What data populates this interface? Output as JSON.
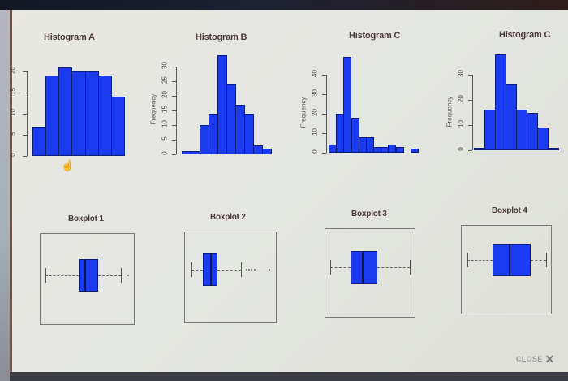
{
  "dialog": {
    "close_label": "CLOSE",
    "close_icon": "x-icon"
  },
  "colors": {
    "bar_fill": "#1a3bf0",
    "bar_border": "#0c1c7a",
    "panel_bg": "#e6e6e0",
    "title_text": "#4a3a3a"
  },
  "histograms": [
    {
      "title": "Histogram A",
      "ylabel": "",
      "yticks": [
        "0",
        "5",
        "10",
        "15",
        "20"
      ]
    },
    {
      "title": "Histogram B",
      "ylabel": "Frequency",
      "yticks": [
        "0",
        "5",
        "10",
        "15",
        "20",
        "25",
        "30"
      ]
    },
    {
      "title": "Histogram C",
      "ylabel": "Frequency",
      "yticks": [
        "0",
        "10",
        "20",
        "30",
        "40"
      ]
    },
    {
      "title": "Histogram C",
      "ylabel": "Frequency",
      "yticks": [
        "0",
        "10",
        "20",
        "30"
      ]
    }
  ],
  "boxplots": [
    {
      "title": "Boxplot 1"
    },
    {
      "title": "Boxplot 2"
    },
    {
      "title": "Boxplot 3"
    },
    {
      "title": "Boxplot 4"
    }
  ],
  "chart_data": [
    {
      "type": "bar",
      "title": "Histogram A",
      "xlabel": "",
      "ylabel": "",
      "ylim": [
        0,
        20
      ],
      "values": [
        7,
        19,
        21,
        20,
        20,
        19,
        14
      ],
      "grid": false
    },
    {
      "type": "bar",
      "title": "Histogram B",
      "xlabel": "",
      "ylabel": "Frequency",
      "ylim": [
        0,
        30
      ],
      "values": [
        1,
        1,
        10,
        14,
        34,
        24,
        17,
        14,
        3,
        2
      ],
      "grid": false
    },
    {
      "type": "bar",
      "title": "Histogram C",
      "xlabel": "",
      "ylabel": "Frequency",
      "ylim": [
        0,
        40
      ],
      "values": [
        4,
        20,
        49,
        18,
        8,
        8,
        3,
        3,
        4,
        3,
        0,
        2
      ],
      "grid": false
    },
    {
      "type": "bar",
      "title": "Histogram C",
      "xlabel": "",
      "ylabel": "Frequency",
      "ylim": [
        0,
        30
      ],
      "values": [
        1,
        16,
        38,
        26,
        16,
        15,
        9,
        1
      ],
      "grid": false
    },
    {
      "type": "boxplot",
      "title": "Boxplot 1",
      "orientation": "horizontal",
      "whisker_low": 0.03,
      "q1": 0.4,
      "median": 0.47,
      "q3": 0.62,
      "whisker_high": 0.88,
      "outliers": [
        0.95
      ]
    },
    {
      "type": "boxplot",
      "title": "Boxplot 2",
      "orientation": "horizontal",
      "whisker_low": 0.05,
      "q1": 0.18,
      "median": 0.26,
      "q3": 0.35,
      "whisker_high": 0.62,
      "outliers": [
        0.68,
        0.71,
        0.74,
        0.77,
        0.94
      ]
    },
    {
      "type": "boxplot",
      "title": "Boxplot 3",
      "orientation": "horizontal",
      "whisker_low": 0.03,
      "q1": 0.27,
      "median": 0.4,
      "q3": 0.59,
      "whisker_high": 0.97,
      "outliers": []
    },
    {
      "type": "boxplot",
      "title": "Boxplot 4",
      "orientation": "horizontal",
      "whisker_low": 0.04,
      "q1": 0.34,
      "median": 0.53,
      "q3": 0.79,
      "whisker_high": 0.97,
      "outliers": []
    }
  ]
}
